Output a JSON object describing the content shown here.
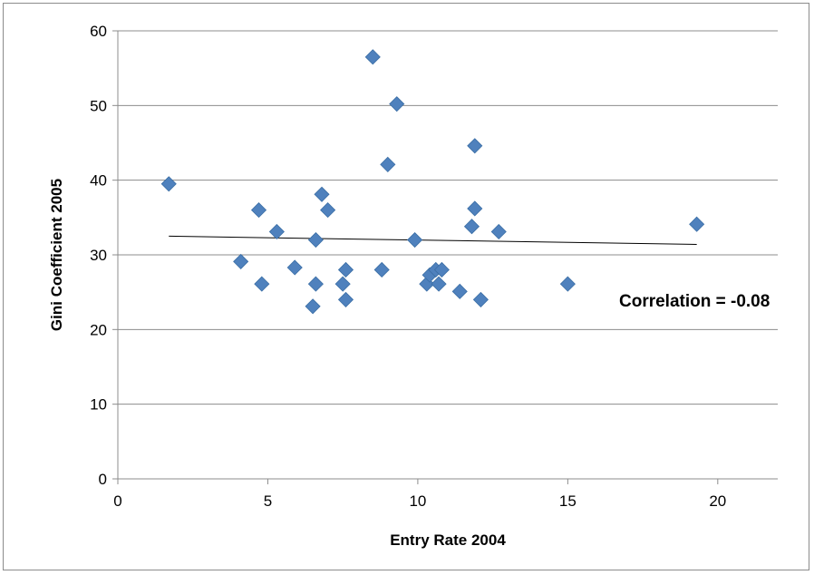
{
  "chart_data": {
    "type": "scatter",
    "title": "",
    "xlabel": "Entry Rate 2004",
    "ylabel": "Gini Coefficient 2005",
    "xlim": [
      0,
      22
    ],
    "ylim": [
      0,
      60
    ],
    "x_ticks": [
      0,
      5,
      10,
      15,
      20
    ],
    "y_ticks": [
      0,
      10,
      20,
      30,
      40,
      50,
      60
    ],
    "grid": "horizontal",
    "marker": "diamond",
    "colors": {
      "marker": "#4f81bd",
      "gridline": "#8c8c8c",
      "trendline": "#000000"
    },
    "points": [
      {
        "x": 1.7,
        "y": 39.5
      },
      {
        "x": 4.1,
        "y": 29.1
      },
      {
        "x": 4.7,
        "y": 36.0
      },
      {
        "x": 4.8,
        "y": 26.1
      },
      {
        "x": 5.3,
        "y": 33.1
      },
      {
        "x": 5.9,
        "y": 28.3
      },
      {
        "x": 6.5,
        "y": 23.1
      },
      {
        "x": 6.6,
        "y": 26.1
      },
      {
        "x": 6.6,
        "y": 32.0
      },
      {
        "x": 6.8,
        "y": 38.1
      },
      {
        "x": 7.0,
        "y": 36.0
      },
      {
        "x": 7.5,
        "y": 26.1
      },
      {
        "x": 7.6,
        "y": 28.0
      },
      {
        "x": 7.6,
        "y": 24.0
      },
      {
        "x": 8.5,
        "y": 56.5
      },
      {
        "x": 8.8,
        "y": 28.0
      },
      {
        "x": 9.0,
        "y": 42.1
      },
      {
        "x": 9.3,
        "y": 50.2
      },
      {
        "x": 9.9,
        "y": 32.0
      },
      {
        "x": 10.3,
        "y": 26.1
      },
      {
        "x": 10.4,
        "y": 27.3
      },
      {
        "x": 10.6,
        "y": 28.0
      },
      {
        "x": 10.7,
        "y": 26.1
      },
      {
        "x": 10.8,
        "y": 28.0
      },
      {
        "x": 11.4,
        "y": 25.1
      },
      {
        "x": 11.8,
        "y": 33.8
      },
      {
        "x": 11.9,
        "y": 44.6
      },
      {
        "x": 11.9,
        "y": 36.2
      },
      {
        "x": 12.1,
        "y": 24.0
      },
      {
        "x": 12.7,
        "y": 33.1
      },
      {
        "x": 15.0,
        "y": 26.1
      },
      {
        "x": 19.3,
        "y": 34.1
      }
    ],
    "trendline": {
      "x": [
        1.7,
        19.3
      ],
      "y": [
        32.5,
        31.4
      ]
    },
    "annotation": "Correlation = -0.08"
  }
}
